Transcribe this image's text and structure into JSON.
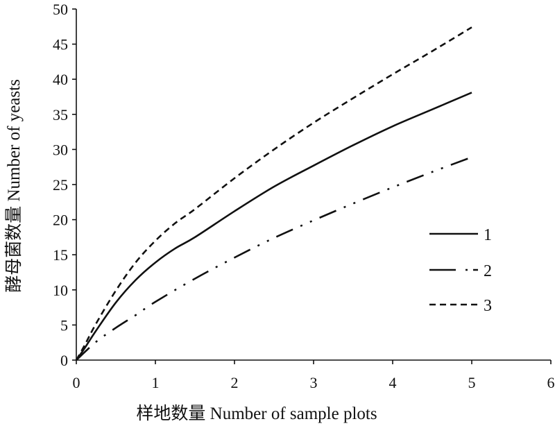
{
  "chart_data": {
    "type": "line",
    "xlabel": "样地数量 Number of sample plots",
    "ylabel": "酵母菌数量 Number of yeasts",
    "xlim": [
      0,
      6
    ],
    "ylim": [
      0,
      50
    ],
    "xticks": [
      0,
      1,
      2,
      3,
      4,
      5,
      6
    ],
    "yticks": [
      0,
      5,
      10,
      15,
      20,
      25,
      30,
      35,
      40,
      45,
      50
    ],
    "grid": false,
    "legend_position": "right",
    "series": [
      {
        "name": "1",
        "dash": "solid",
        "x": [
          0,
          0.1,
          0.25,
          0.5,
          0.75,
          1.0,
          1.25,
          1.5,
          2.0,
          2.5,
          3.0,
          3.5,
          4.0,
          4.5,
          5.0
        ],
        "y": [
          0,
          1.6,
          4.2,
          8.2,
          11.4,
          13.9,
          15.9,
          17.5,
          21.2,
          24.7,
          27.7,
          30.6,
          33.3,
          35.7,
          38.1
        ]
      },
      {
        "name": "2",
        "dash": "dash-dot-dot",
        "x": [
          0,
          0.25,
          0.5,
          0.75,
          1.0,
          1.5,
          2.0,
          2.5,
          3.0,
          3.5,
          4.0,
          4.5,
          5.0
        ],
        "y": [
          0,
          2.6,
          4.6,
          6.4,
          8.3,
          11.6,
          14.6,
          17.4,
          19.9,
          22.3,
          24.6,
          26.8,
          28.9
        ]
      },
      {
        "name": "3",
        "dash": "dashed",
        "x": [
          0,
          0.1,
          0.25,
          0.5,
          0.75,
          1.0,
          1.25,
          1.5,
          2.0,
          2.5,
          3.0,
          3.5,
          4.0,
          4.5,
          5.0
        ],
        "y": [
          0,
          2.0,
          5.2,
          9.9,
          13.9,
          17.0,
          19.5,
          21.5,
          25.9,
          30.0,
          33.8,
          37.3,
          40.7,
          44.0,
          47.4
        ]
      }
    ]
  }
}
